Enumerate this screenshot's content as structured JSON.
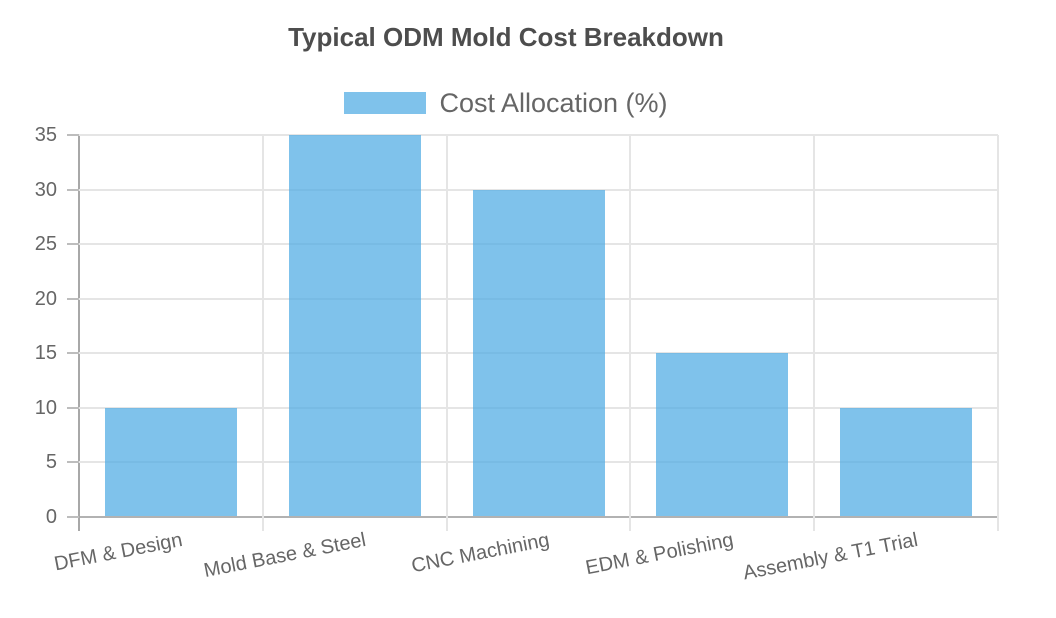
{
  "chart_data": {
    "type": "bar",
    "title": "Typical ODM Mold Cost Breakdown",
    "categories": [
      "DFM & Design",
      "Mold Base & Steel",
      "CNC Machining",
      "EDM & Polishing",
      "Assembly & T1 Trial"
    ],
    "series": [
      {
        "name": "Cost Allocation (%)",
        "values": [
          10,
          35,
          30,
          15,
          10
        ]
      }
    ],
    "xlabel": "",
    "ylabel": "",
    "ylim": [
      0,
      35
    ],
    "yticks": [
      0,
      5,
      10,
      15,
      20,
      25,
      30,
      35
    ],
    "grid": true,
    "legend_position": "top",
    "x_label_rotation_deg": -11,
    "colors": {
      "bar": "rgba(77, 170, 227, 0.72)",
      "grid": "#e5e5e5",
      "axis_left": "#a8a8a8",
      "axis_bottom": "#b2b2b2",
      "y_tick_mark": "#bdbdbd",
      "tick_label": "#666666",
      "title": "#4d4d4d",
      "legend_text": "#666666",
      "background": "#ffffff"
    }
  }
}
